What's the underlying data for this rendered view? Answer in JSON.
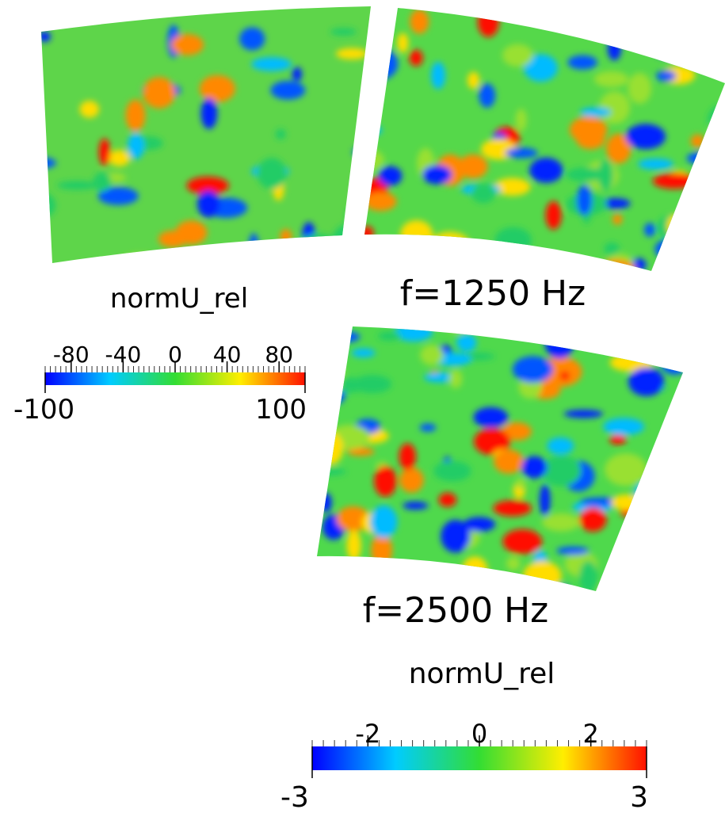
{
  "panels": [
    {
      "label": null
    },
    {
      "label": "f=1250 Hz"
    },
    {
      "label": "f=2500 Hz"
    }
  ],
  "colorbars": [
    {
      "title": "normU_rel",
      "lim": [
        -100,
        100
      ],
      "ticks": [
        -80,
        -40,
        0,
        40,
        80
      ]
    },
    {
      "title": "normU_rel",
      "lim": [
        -3,
        3
      ],
      "ticks": [
        -2,
        0,
        2
      ]
    }
  ]
}
